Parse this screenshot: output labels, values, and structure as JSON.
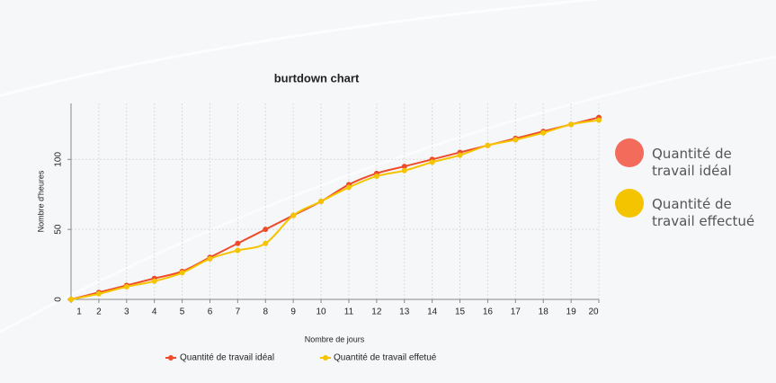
{
  "chart_data": {
    "type": "line",
    "title": "burtdown chart",
    "x_label": "Nombre de jours",
    "y_label": "Nombre d'heures",
    "x": [
      1,
      2,
      3,
      4,
      5,
      6,
      7,
      8,
      9,
      10,
      11,
      12,
      13,
      14,
      15,
      16,
      17,
      18,
      19,
      20
    ],
    "xlim": [
      1,
      20
    ],
    "xticks": [
      1,
      2,
      3,
      4,
      5,
      6,
      7,
      8,
      9,
      10,
      11,
      12,
      13,
      14,
      15,
      16,
      17,
      18,
      19,
      20
    ],
    "ylim": [
      0,
      140
    ],
    "yticks": [
      0,
      50,
      100
    ],
    "grid": true,
    "series": [
      {
        "name": "Quantité de travail idéal",
        "color": "#ee4b2b",
        "values": [
          0,
          5,
          10,
          15,
          20,
          30,
          40,
          50,
          60,
          70,
          82,
          90,
          95,
          100,
          105,
          110,
          115,
          120,
          125,
          130
        ]
      },
      {
        "name": "Quantité de travail effetué",
        "color": "#f5c400",
        "values": [
          0,
          4,
          9,
          13,
          19,
          29,
          35,
          40,
          60,
          70,
          80,
          88,
          92,
          98,
          103,
          110,
          114,
          119,
          125,
          128
        ]
      }
    ],
    "side_legend": [
      {
        "label": "Quantité de travail idéal",
        "color": "#f26b5b"
      },
      {
        "label": "Quantité de travail effectué",
        "color": "#f5c400"
      }
    ]
  }
}
